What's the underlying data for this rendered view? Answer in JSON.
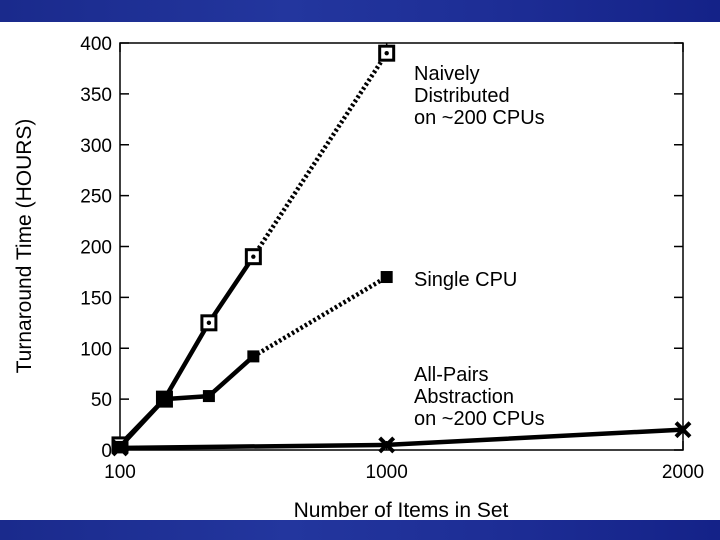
{
  "colors": {
    "banner": "#1a2a8c",
    "line": "#000000"
  },
  "chart_data": {
    "type": "line",
    "title": "",
    "xlabel": "Number of Items in Set",
    "ylabel": "Turnaround Time (HOURS)",
    "x_ticks": [
      100,
      1000,
      2000
    ],
    "y_ticks": [
      0,
      50,
      100,
      150,
      200,
      250,
      300,
      350,
      400
    ],
    "xlim": [
      100,
      2000
    ],
    "ylim": [
      0,
      400
    ],
    "grid": false,
    "series": [
      {
        "name": "Naively Distributed on ~200 CPUs",
        "label_lines": [
          "Naively",
          "Distributed",
          "on ~200 CPUs"
        ],
        "marker": "square-dot",
        "measured": [
          [
            100,
            5
          ],
          [
            250,
            50
          ],
          [
            400,
            125
          ],
          [
            550,
            190
          ]
        ],
        "projected": [
          [
            550,
            190
          ],
          [
            1000,
            390
          ]
        ]
      },
      {
        "name": "Single CPU",
        "label_lines": [
          "Single CPU"
        ],
        "marker": "filled-square",
        "measured": [
          [
            100,
            3
          ],
          [
            250,
            50
          ],
          [
            400,
            53
          ],
          [
            550,
            92
          ]
        ],
        "projected": [
          [
            550,
            92
          ],
          [
            1000,
            170
          ]
        ]
      },
      {
        "name": "All-Pairs Abstraction on ~200 CPUs",
        "label_lines": [
          "All-Pairs",
          "Abstraction",
          "on ~200 CPUs"
        ],
        "marker": "x",
        "measured": [
          [
            100,
            2
          ],
          [
            1000,
            5
          ],
          [
            2000,
            20
          ]
        ],
        "projected": []
      }
    ]
  }
}
